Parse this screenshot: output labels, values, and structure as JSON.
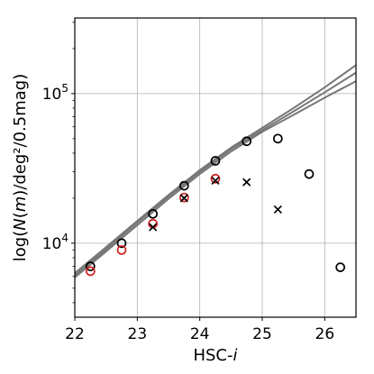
{
  "chart_data": {
    "type": "scatter",
    "title": "",
    "xlabel": "HSC-i",
    "ylabel": "log(N(m)/deg²/0.5mag)",
    "xlim": [
      22.0,
      26.5
    ],
    "ylim": [
      3200,
      320000
    ],
    "yscale": "log",
    "grid": true,
    "x_ticks": [
      22,
      23,
      24,
      25,
      26
    ],
    "y_ticks": [
      {
        "value": 10000,
        "base": "10",
        "exp": "4"
      },
      {
        "value": 100000,
        "base": "10",
        "exp": "5"
      }
    ],
    "series": [
      {
        "marker": "circle",
        "color": "#000000",
        "x": [
          22.25,
          22.75,
          23.25,
          23.75,
          24.25,
          24.75,
          25.25,
          25.75,
          26.25
        ],
        "y": [
          7000,
          10000,
          15700,
          24200,
          35500,
          48000,
          50000,
          29000,
          6900
        ]
      },
      {
        "marker": "circle",
        "color": "#d11f1f",
        "x": [
          22.25,
          22.75,
          23.25,
          23.75,
          24.25
        ],
        "y": [
          6500,
          9000,
          13500,
          20200,
          27000
        ]
      },
      {
        "marker": "cross",
        "color": "#000000",
        "x": [
          23.25,
          23.75,
          24.25,
          24.75,
          25.25
        ],
        "y": [
          12800,
          20000,
          26200,
          25600,
          16800
        ]
      },
      {
        "marker": "line",
        "color": "#777777",
        "x": [
          22.0,
          22.5,
          23.0,
          23.5,
          24.0,
          24.5,
          25.0,
          25.5,
          26.0,
          26.5
        ],
        "y": [
          5900,
          8800,
          13200,
          19800,
          29000,
          41000,
          55500,
          72000,
          94000,
          121000
        ]
      },
      {
        "marker": "line",
        "color": "#777777",
        "x": [
          22.0,
          22.5,
          23.0,
          23.5,
          24.0,
          24.5,
          25.0,
          25.5,
          26.0,
          26.5
        ],
        "y": [
          6100,
          9100,
          13700,
          20500,
          30000,
          42500,
          57000,
          76000,
          102000,
          138000
        ]
      },
      {
        "marker": "line",
        "color": "#777777",
        "x": [
          22.0,
          22.5,
          23.0,
          23.5,
          24.0,
          24.5,
          25.0,
          25.5,
          26.0,
          26.5
        ],
        "y": [
          6300,
          9400,
          14100,
          21000,
          30800,
          43500,
          59000,
          80000,
          110000,
          155000
        ]
      }
    ]
  }
}
